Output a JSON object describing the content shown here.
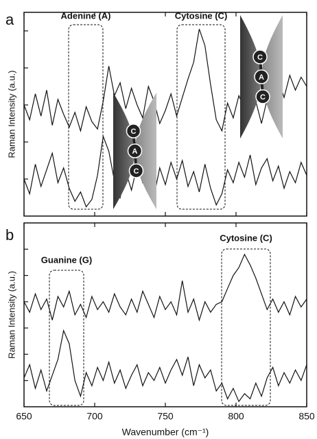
{
  "chart_data": [
    {
      "type": "line",
      "panel": "a",
      "ylabel": "Raman Intensity (a.u.)",
      "annotations": [
        "Adenine (A)",
        "Cytosine (C)"
      ],
      "insets": [
        [
          "C",
          "A",
          "C"
        ],
        [
          "C",
          "A",
          "C"
        ]
      ],
      "x": [
        650,
        654,
        658,
        662,
        666,
        670,
        674,
        678,
        682,
        686,
        690,
        694,
        698,
        702,
        706,
        710,
        714,
        718,
        722,
        726,
        730,
        734,
        738,
        742,
        746,
        750,
        754,
        758,
        762,
        766,
        770,
        774,
        778,
        782,
        786,
        790,
        794,
        798,
        802,
        806,
        810,
        814,
        818,
        822,
        826,
        830,
        834,
        838,
        842,
        846,
        850
      ],
      "series": [
        {
          "color": "#111111",
          "values": [
            6.0,
            5.2,
            6.6,
            5.4,
            6.8,
            4.9,
            6.3,
            5.5,
            4.8,
            5.6,
            4.6,
            5.9,
            5.1,
            4.7,
            6.2,
            8.1,
            6.5,
            7.2,
            5.8,
            6.9,
            6.0,
            5.3,
            7.0,
            6.2,
            5.0,
            5.7,
            6.6,
            5.4,
            6.4,
            7.4,
            8.3,
            10.1,
            9.2,
            7.1,
            5.2,
            4.6,
            6.1,
            5.3,
            6.5,
            5.8,
            6.9,
            6.2,
            5.0,
            6.3,
            5.6,
            7.3,
            6.4,
            7.6,
            6.8,
            7.5,
            7.0
          ]
        },
        {
          "color": "#111111",
          "values": [
            2.0,
            1.2,
            2.8,
            1.6,
            2.5,
            3.4,
            1.8,
            2.6,
            1.5,
            0.8,
            1.3,
            0.5,
            0.9,
            2.2,
            4.3,
            3.5,
            1.9,
            1.0,
            2.4,
            1.4,
            2.7,
            1.8,
            2.3,
            1.1,
            2.6,
            1.7,
            2.9,
            2.0,
            3.0,
            1.6,
            2.4,
            1.3,
            2.8,
            1.5,
            0.6,
            1.2,
            2.5,
            1.8,
            2.9,
            2.1,
            3.3,
            1.7,
            2.6,
            3.1,
            1.9,
            2.7,
            1.5,
            2.4,
            1.8,
            2.9,
            2.2
          ]
        }
      ],
      "xlim": [
        650,
        850
      ],
      "xticks": [
        650,
        700,
        750,
        800,
        850
      ],
      "xtick_labels": false,
      "ylim": [
        0,
        11
      ],
      "yticks": [
        2,
        4,
        6,
        8,
        10
      ]
    },
    {
      "type": "line",
      "panel": "b",
      "ylabel": "Raman Intensity (a.u.)",
      "xlabel": "Wavenumber (cm⁻¹)",
      "annotations": [
        "Guanine (G)",
        "Cytosine (C)"
      ],
      "x": [
        650,
        654,
        658,
        662,
        666,
        670,
        674,
        678,
        682,
        686,
        690,
        694,
        698,
        702,
        706,
        710,
        714,
        718,
        722,
        726,
        730,
        734,
        738,
        742,
        746,
        750,
        754,
        758,
        762,
        766,
        770,
        774,
        778,
        782,
        786,
        790,
        794,
        798,
        802,
        806,
        810,
        814,
        818,
        822,
        826,
        830,
        834,
        838,
        842,
        846,
        850
      ],
      "series": [
        {
          "color": "#111111",
          "values": [
            4.0,
            3.6,
            4.3,
            3.7,
            4.1,
            3.3,
            4.2,
            3.8,
            4.4,
            3.5,
            3.9,
            3.4,
            4.2,
            3.7,
            4.0,
            3.6,
            4.3,
            3.8,
            3.5,
            4.1,
            3.6,
            4.4,
            3.9,
            3.4,
            4.2,
            3.7,
            4.0,
            3.5,
            4.8,
            3.6,
            4.1,
            3.3,
            4.0,
            3.6,
            3.9,
            4.0,
            4.5,
            5.0,
            5.3,
            5.8,
            5.4,
            4.9,
            4.3,
            3.7,
            4.1,
            3.6,
            4.0,
            3.5,
            4.2,
            3.8,
            4.1
          ]
        },
        {
          "color": "#111111",
          "values": [
            1.1,
            1.6,
            0.7,
            1.4,
            0.6,
            1.2,
            1.8,
            2.9,
            2.4,
            1.0,
            0.4,
            1.3,
            0.8,
            1.5,
            1.0,
            1.7,
            0.9,
            1.4,
            0.7,
            1.2,
            1.6,
            0.8,
            1.3,
            1.0,
            1.5,
            0.9,
            1.4,
            1.8,
            1.2,
            1.9,
            0.8,
            1.6,
            1.1,
            1.4,
            0.6,
            0.9,
            0.3,
            0.7,
            0.2,
            0.5,
            0.3,
            0.9,
            0.4,
            1.1,
            1.5,
            0.8,
            1.3,
            0.9,
            1.4,
            1.0,
            1.6
          ]
        }
      ],
      "xlim": [
        650,
        850
      ],
      "xticks": [
        650,
        700,
        750,
        800,
        850
      ],
      "xtick_labels": true,
      "ylim": [
        0,
        7
      ],
      "yticks": [
        1,
        2,
        3,
        4,
        5,
        6
      ]
    }
  ]
}
